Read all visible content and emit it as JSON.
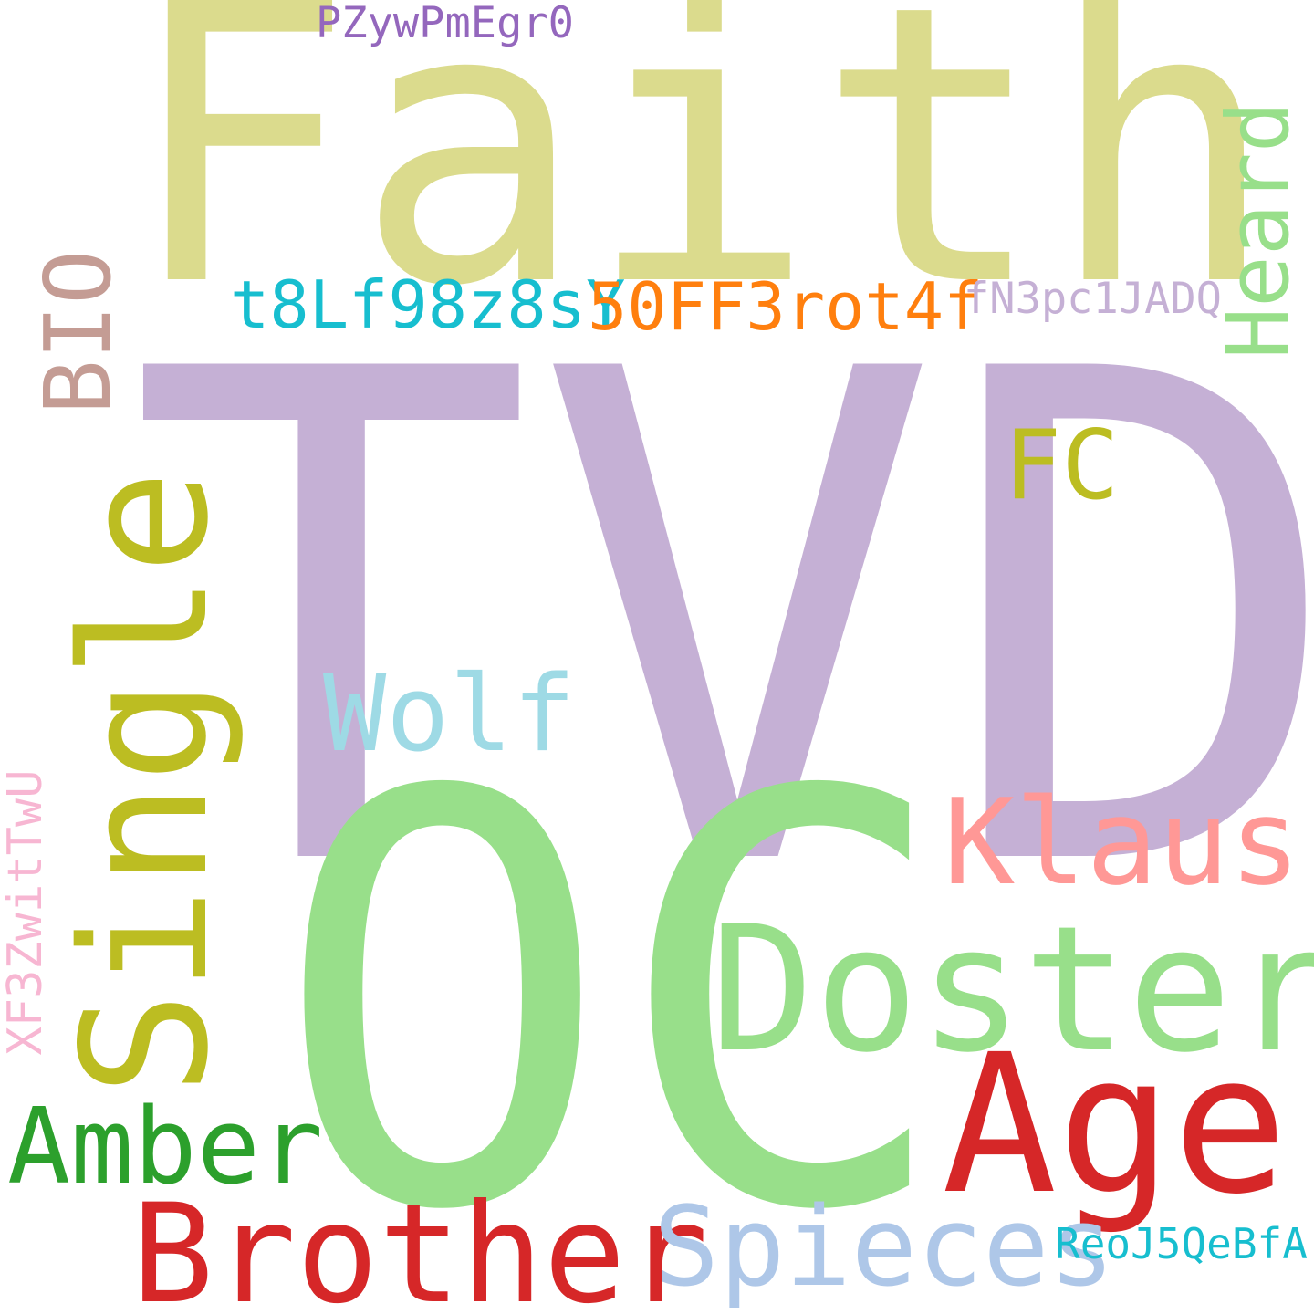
{
  "words": {
    "tvd": {
      "text": "TVD",
      "color": "#c5b0d5"
    },
    "oc": {
      "text": "OC",
      "color": "#98df8a"
    },
    "faith": {
      "text": "Faith",
      "color": "#dbdb8d"
    },
    "single": {
      "text": "Single",
      "color": "#bcbd22"
    },
    "doster": {
      "text": "Doster",
      "color": "#98df8a"
    },
    "age": {
      "text": "Age",
      "color": "#d62728"
    },
    "brother": {
      "text": "Brother",
      "color": "#d62728"
    },
    "spieces": {
      "text": "Spieces",
      "color": "#aec7e8"
    },
    "klaus": {
      "text": "Klaus",
      "color": "#ff9896"
    },
    "amber": {
      "text": "Amber",
      "color": "#2ca02c"
    },
    "wolf": {
      "text": "Wolf",
      "color": "#9edae5"
    },
    "fc": {
      "text": "FC",
      "color": "#bcbd22"
    },
    "bio": {
      "text": "BIO",
      "color": "#c49c94"
    },
    "heard": {
      "text": "Heard",
      "color": "#98df8a"
    },
    "t8": {
      "text": "t8Lf98z8sY",
      "color": "#17becf"
    },
    "ff": {
      "text": "50FF3rot4f",
      "color": "#ff7f0e"
    },
    "fn3": {
      "text": "fN3pc1JADQ",
      "color": "#c5b0d5"
    },
    "pzy": {
      "text": "PZywPmEgr0",
      "color": "#9467bd"
    },
    "xf3": {
      "text": "XF3ZwitTwU",
      "color": "#f7b6d2"
    },
    "reo": {
      "text": "ReoJ5QeBfA",
      "color": "#17becf"
    }
  }
}
